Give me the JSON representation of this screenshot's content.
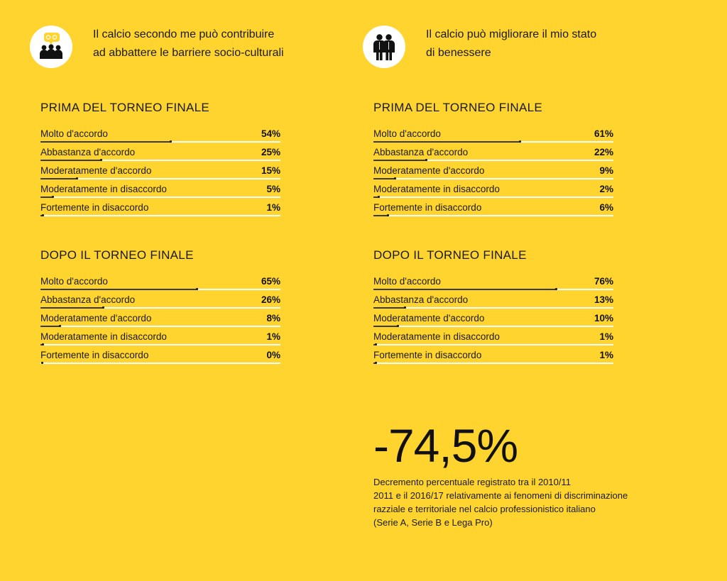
{
  "panels": [
    {
      "icon": "people-speech-icon",
      "heading": "Il calcio secondo me può contribuire\nad abbattere le barriere socio-culturali",
      "sections": [
        {
          "title": "PRIMA DEL TORNEO FINALE",
          "rows": [
            {
              "label": "Molto d'accordo",
              "value": 54,
              "display": "54%"
            },
            {
              "label": "Abbastanza d'accordo",
              "value": 25,
              "display": "25%"
            },
            {
              "label": "Moderatamente d'accordo",
              "value": 15,
              "display": "15%"
            },
            {
              "label": "Moderatamente in disaccordo",
              "value": 5,
              "display": "5%"
            },
            {
              "label": "Fortemente in disaccordo",
              "value": 1,
              "display": "1%"
            }
          ]
        },
        {
          "title": "DOPO IL TORNEO FINALE",
          "rows": [
            {
              "label": "Molto d'accordo",
              "value": 65,
              "display": "65%"
            },
            {
              "label": "Abbastanza d'accordo",
              "value": 26,
              "display": "26%"
            },
            {
              "label": "Moderatamente d'accordo",
              "value": 8,
              "display": "8%"
            },
            {
              "label": "Moderatamente in disaccordo",
              "value": 1,
              "display": "1%"
            },
            {
              "label": "Fortemente in disaccordo",
              "value": 0,
              "display": "0%"
            }
          ]
        }
      ]
    },
    {
      "icon": "two-people-icon",
      "heading": "Il calcio può migliorare il mio stato\ndi benessere",
      "sections": [
        {
          "title": "PRIMA DEL TORNEO FINALE",
          "rows": [
            {
              "label": "Molto d'accordo",
              "value": 61,
              "display": "61%"
            },
            {
              "label": "Abbastanza d'accordo",
              "value": 22,
              "display": "22%"
            },
            {
              "label": "Moderatamente d'accordo",
              "value": 9,
              "display": "9%"
            },
            {
              "label": "Moderatamente in disaccordo",
              "value": 2,
              "display": "2%"
            },
            {
              "label": "Fortemente in disaccordo",
              "value": 6,
              "display": "6%"
            }
          ]
        },
        {
          "title": "DOPO IL TORNEO FINALE",
          "rows": [
            {
              "label": "Molto d'accordo",
              "value": 76,
              "display": "76%"
            },
            {
              "label": "Abbastanza d'accordo",
              "value": 13,
              "display": "13%"
            },
            {
              "label": "Moderatamente d'accordo",
              "value": 10,
              "display": "10%"
            },
            {
              "label": "Moderatamente in disaccordo",
              "value": 1,
              "display": "1%"
            },
            {
              "label": "Fortemente in disaccordo",
              "value": 1,
              "display": "1%"
            }
          ]
        }
      ]
    }
  ],
  "stat": {
    "value": "-74,5%",
    "description": "Decremento percentuale registrato tra il 2010/11\n2011 e il 2016/17 relativamente ai fenomeni di discriminazione\nrazziale e territoriale nel calcio professionistico italiano\n(Serie A, Serie B e Lega Pro)"
  },
  "colors": {
    "background": "#FFD42F",
    "track": "#FFFFFF",
    "fill": "#3A3A3A",
    "text": "#1A1A1A"
  },
  "chart_data": {
    "type": "bar",
    "xlim": [
      0,
      100
    ],
    "charts": [
      {
        "title": "PRIMA DEL TORNEO FINALE",
        "categories": [
          "Molto d'accordo",
          "Abbastanza d'accordo",
          "Moderatamente d'accordo",
          "Moderatamente in disaccordo",
          "Fortemente in disaccordo"
        ],
        "values": [
          54,
          25,
          15,
          5,
          1
        ]
      },
      {
        "title": "DOPO IL TORNEO FINALE",
        "categories": [
          "Molto d'accordo",
          "Abbastanza d'accordo",
          "Moderatamente d'accordo",
          "Moderatamente in disaccordo",
          "Fortemente in disaccordo"
        ],
        "values": [
          65,
          26,
          8,
          1,
          0
        ]
      },
      {
        "title": "PRIMA DEL TORNEO FINALE",
        "categories": [
          "Molto d'accordo",
          "Abbastanza d'accordo",
          "Moderatamente d'accordo",
          "Moderatamente in disaccordo",
          "Fortemente in disaccordo"
        ],
        "values": [
          61,
          22,
          9,
          2,
          6
        ]
      },
      {
        "title": "DOPO IL TORNEO FINALE",
        "categories": [
          "Molto d'accordo",
          "Abbastanza d'accordo",
          "Moderatamente d'accordo",
          "Moderatamente in disaccordo",
          "Fortemente in disaccordo"
        ],
        "values": [
          76,
          13,
          10,
          1,
          1
        ]
      }
    ]
  }
}
